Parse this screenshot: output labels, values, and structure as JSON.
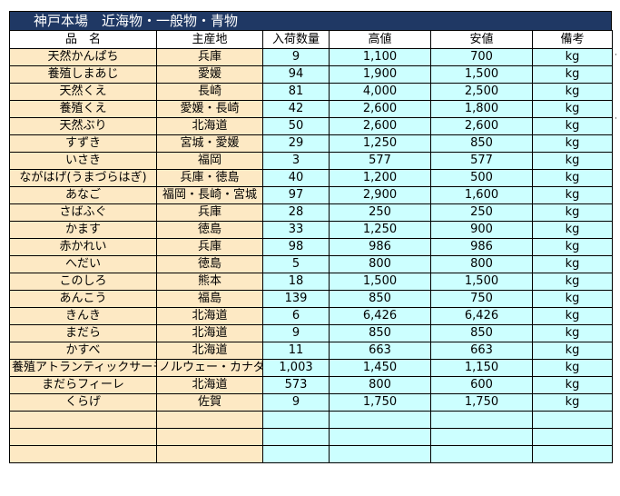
{
  "title": "神戸本場　近海物・一般物・青物",
  "headers": [
    "品　名",
    "主産地",
    "入荷数量",
    "高値",
    "安値",
    "備考"
  ],
  "rows": [
    [
      "天然かんぱち",
      "兵庫",
      "9",
      "1,100",
      "700",
      "kg"
    ],
    [
      "養殖しまあじ",
      "愛媛",
      "94",
      "1,900",
      "1,500",
      "kg"
    ],
    [
      "天然くえ",
      "長崎",
      "81",
      "4,000",
      "2,500",
      "kg"
    ],
    [
      "養殖くえ",
      "愛媛・長崎",
      "42",
      "2,600",
      "1,800",
      "kg"
    ],
    [
      "天然ぶり",
      "北海道",
      "50",
      "2,600",
      "2,600",
      "kg"
    ],
    [
      "すずき",
      "宮城・愛媛",
      "29",
      "1,250",
      "850",
      "kg"
    ],
    [
      "いさき",
      "福岡",
      "3",
      "577",
      "577",
      "kg"
    ],
    [
      "ながはげ(うまづらはぎ)",
      "兵庫・徳島",
      "40",
      "1,200",
      "500",
      "kg"
    ],
    [
      "あなご",
      "福岡・長崎・宮城",
      "97",
      "2,900",
      "1,600",
      "kg"
    ],
    [
      "さばふぐ",
      "兵庫",
      "28",
      "250",
      "250",
      "kg"
    ],
    [
      "かます",
      "徳島",
      "33",
      "1,250",
      "900",
      "kg"
    ],
    [
      "赤かれい",
      "兵庫",
      "98",
      "986",
      "986",
      "kg"
    ],
    [
      "へだい",
      "徳島",
      "5",
      "800",
      "800",
      "kg"
    ],
    [
      "このしろ",
      "熊本",
      "18",
      "1,500",
      "1,500",
      "kg"
    ],
    [
      "あんこう",
      "福島",
      "139",
      "850",
      "750",
      "kg"
    ],
    [
      "きんき",
      "北海道",
      "6",
      "6,426",
      "6,426",
      "kg"
    ],
    [
      "まだら",
      "北海道",
      "9",
      "850",
      "850",
      "kg"
    ],
    [
      "かすべ",
      "北海道",
      "11",
      "663",
      "663",
      "kg"
    ],
    [
      "養殖アトランティックサーモン",
      "ノルウェー・カナダ他",
      "1,003",
      "1,450",
      "1,150",
      "kg"
    ],
    [
      "まだらフィーレ",
      "北海道",
      "573",
      "800",
      "600",
      "kg"
    ],
    [
      "くらげ",
      "佐賀",
      "9",
      "1,750",
      "1,750",
      "kg"
    ],
    [
      "",
      "",
      "",
      "",
      "",
      ""
    ],
    [
      "",
      "",
      "",
      "",
      "",
      ""
    ],
    [
      "",
      "",
      "",
      "",
      "",
      ""
    ]
  ]
}
